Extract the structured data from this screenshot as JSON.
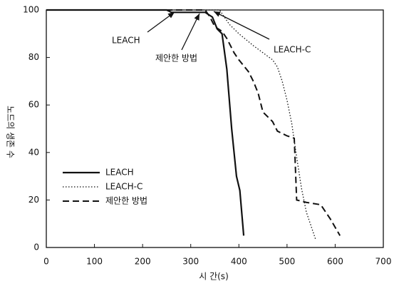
{
  "chart_data": {
    "type": "line",
    "x_label": "시 간(s)",
    "y_label": "노드의 생존 수",
    "xlim": [
      0,
      700
    ],
    "xticks": [
      0,
      100,
      200,
      300,
      400,
      500,
      600,
      700
    ],
    "ylim": [
      0,
      100
    ],
    "yticks": [
      0,
      20,
      40,
      60,
      80,
      100
    ],
    "grid": false,
    "legend": "lower left",
    "annotations": [
      "LEACH",
      "제안한 방법",
      "LEACH-C"
    ],
    "series": [
      {
        "name": "LEACH",
        "color": "#111111",
        "dash": "solid",
        "x": [
          0,
          250,
          260,
          330,
          345,
          355,
          365,
          375,
          385,
          395,
          402,
          410
        ],
        "values": [
          100,
          100,
          99,
          99,
          97,
          92,
          90,
          75,
          50,
          30,
          24,
          5
        ]
      },
      {
        "name": "LEACH-C",
        "color": "#111111",
        "dash": "dotted",
        "x": [
          0,
          360,
          380,
          400,
          430,
          450,
          470,
          480,
          490,
          500,
          510,
          520,
          530,
          540,
          560
        ],
        "values": [
          100,
          100,
          94,
          90,
          85,
          82,
          79,
          76,
          70,
          62,
          52,
          38,
          25,
          15,
          3
        ]
      },
      {
        "name": "제안한 방법",
        "color": "#111111",
        "dash": "dashed",
        "x": [
          0,
          330,
          340,
          350,
          365,
          375,
          390,
          400,
          420,
          430,
          440,
          450,
          460,
          470,
          480,
          490,
          500,
          515,
          520,
          540,
          570,
          590,
          610
        ],
        "values": [
          100,
          100,
          97,
          93,
          91,
          88,
          82,
          79,
          74,
          70,
          65,
          57,
          55,
          53,
          49,
          48,
          47,
          46,
          20,
          19,
          18,
          12,
          5
        ]
      }
    ]
  }
}
